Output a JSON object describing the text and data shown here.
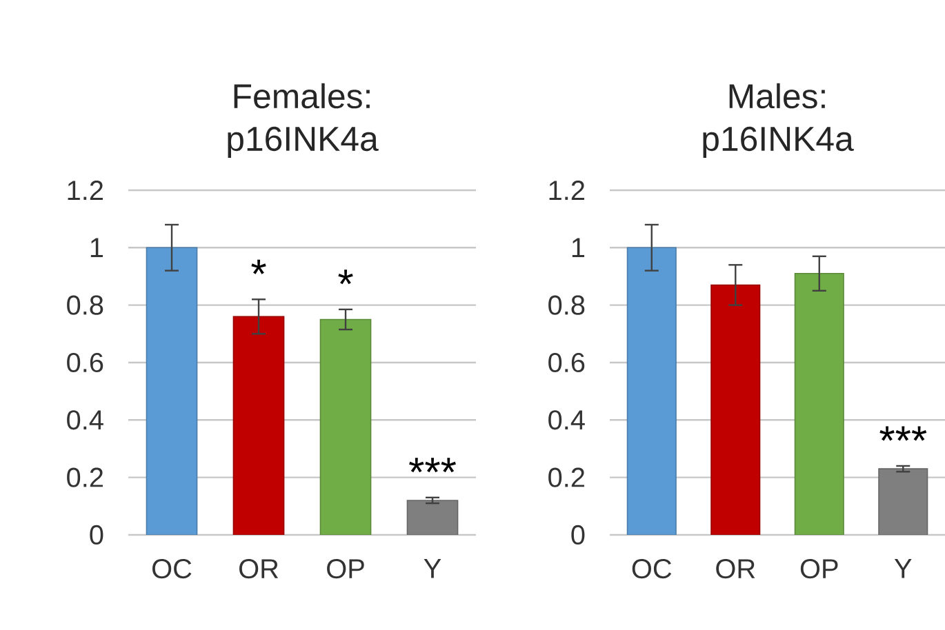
{
  "chart_data": [
    {
      "type": "bar",
      "title": "Females: p16INK4a",
      "categories": [
        "OC",
        "OR",
        "OP",
        "Y"
      ],
      "values": [
        1.0,
        0.76,
        0.75,
        0.12
      ],
      "errors": [
        0.08,
        0.06,
        0.035,
        0.01
      ],
      "colors": [
        "#5b9bd5",
        "#c00000",
        "#70ad47",
        "#7f7f7f"
      ],
      "ylim": [
        0,
        1.2
      ],
      "yticks": [
        0,
        0.2,
        0.4,
        0.6,
        0.8,
        1,
        1.2
      ],
      "grid": "y",
      "annotations": [
        {
          "text": "*",
          "x": "OR",
          "y": 0.76
        },
        {
          "text": "*",
          "x": "OP",
          "y": 0.75
        },
        {
          "text": "***",
          "x": "Y",
          "y": 0.12
        }
      ]
    },
    {
      "type": "bar",
      "title": "Males: p16INK4a",
      "categories": [
        "OC",
        "OR",
        "OP",
        "Y"
      ],
      "values": [
        1.0,
        0.87,
        0.91,
        0.23
      ],
      "errors": [
        0.08,
        0.07,
        0.06,
        0.01
      ],
      "colors": [
        "#5b9bd5",
        "#c00000",
        "#70ad47",
        "#7f7f7f"
      ],
      "ylim": [
        0,
        1.2
      ],
      "yticks": [
        0,
        0.2,
        0.4,
        0.6,
        0.8,
        1,
        1.2
      ],
      "grid": "y",
      "annotations": [
        {
          "text": "***",
          "x": "Y",
          "y": 0.23
        }
      ]
    }
  ]
}
